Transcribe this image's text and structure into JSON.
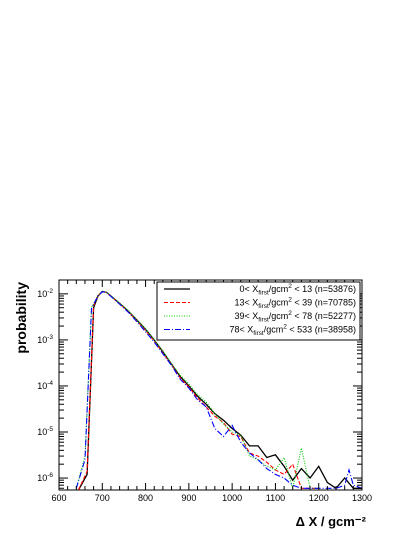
{
  "chart_data": {
    "type": "line",
    "xlabel": "Δ X / gcm⁻²",
    "ylabel": "probability",
    "xlim": [
      600,
      1300
    ],
    "ylim": [
      5.5e-07,
      0.02
    ],
    "y_scale": "log",
    "x_ticks": [
      "600",
      "700",
      "800",
      "900",
      "1000",
      "1100",
      "1200",
      "1300"
    ],
    "y_ticks": [
      {
        "base": "10",
        "exp": "-6",
        "value": 1e-06
      },
      {
        "base": "10",
        "exp": "-5",
        "value": 1e-05
      },
      {
        "base": "10",
        "exp": "-4",
        "value": 0.0001
      },
      {
        "base": "10",
        "exp": "-3",
        "value": 0.001
      },
      {
        "base": "10",
        "exp": "-2",
        "value": 0.01
      }
    ],
    "legend_position": "top-right",
    "series": [
      {
        "name": "0< X_first/gcm² < 13 (n=53876)",
        "legend": {
          "lo": "0",
          "hi": "13",
          "n": "(n=53876)"
        },
        "color": "#000000",
        "dash": "",
        "x": [
          645,
          665,
          680,
          690,
          700,
          710,
          720,
          740,
          760,
          780,
          800,
          820,
          840,
          860,
          880,
          900,
          920,
          940,
          960,
          980,
          1000,
          1020,
          1040,
          1060,
          1080,
          1100,
          1120,
          1140,
          1160,
          1180,
          1200,
          1220,
          1240,
          1260,
          1280,
          1300
        ],
        "y": [
          5e-07,
          1.2e-06,
          0.005,
          0.009,
          0.0113,
          0.0108,
          0.009,
          0.0062,
          0.0042,
          0.0027,
          0.0017,
          0.001,
          0.00055,
          0.0003,
          0.00016,
          0.0001,
          6e-05,
          4e-05,
          2.5e-05,
          1.8e-05,
          1.2e-05,
          8.5e-06,
          5e-06,
          5e-06,
          2.8e-06,
          3.2e-06,
          1.8e-06,
          9e-07,
          1.6e-06,
          1e-06,
          1.8e-06,
          8e-07,
          6e-07,
          1e-06,
          6e-07,
          6e-07
        ]
      },
      {
        "name": "13< X_first/gcm² < 39 (n=70785)",
        "legend": {
          "lo": "13",
          "hi": "39",
          "n": "(n=70785)"
        },
        "color": "#ff0000",
        "dash": "4,2",
        "x": [
          645,
          665,
          680,
          690,
          700,
          710,
          720,
          740,
          760,
          780,
          800,
          820,
          840,
          860,
          880,
          900,
          920,
          940,
          960,
          980,
          1000,
          1020,
          1040,
          1060,
          1080,
          1100,
          1120,
          1140,
          1160,
          1180,
          1200
        ],
        "y": [
          5e-07,
          1.4e-06,
          0.0055,
          0.0092,
          0.0112,
          0.0107,
          0.0089,
          0.0061,
          0.0041,
          0.0026,
          0.0016,
          0.00095,
          0.00052,
          0.00029,
          0.00015,
          9.5e-05,
          5.5e-05,
          3.5e-05,
          2.2e-05,
          1.6e-05,
          9e-06,
          8e-06,
          3.5e-06,
          3e-06,
          2.2e-06,
          1.5e-06,
          1.2e-06,
          2e-06,
          6e-07,
          6e-07,
          6e-07
        ]
      },
      {
        "name": "39< X_first/gcm² < 78 (n=52277)",
        "legend": {
          "lo": "39",
          "hi": "78",
          "n": "(n=52277)"
        },
        "color": "#00cc00",
        "dash": "1,1.5",
        "x": [
          640,
          660,
          675,
          690,
          700,
          710,
          720,
          740,
          760,
          780,
          800,
          820,
          840,
          860,
          880,
          900,
          920,
          940,
          960,
          980,
          1000,
          1020,
          1040,
          1060,
          1080,
          1100,
          1120,
          1140,
          1160,
          1180,
          1200
        ],
        "y": [
          6e-07,
          3e-06,
          0.005,
          0.0093,
          0.0113,
          0.0108,
          0.009,
          0.0063,
          0.0043,
          0.0027,
          0.0017,
          0.001,
          0.00058,
          0.0003,
          0.00017,
          0.00011,
          6.5e-05,
          4.5e-05,
          2.5e-05,
          1.5e-05,
          1e-05,
          8.5e-06,
          3e-06,
          2.5e-06,
          1.8e-06,
          1.5e-06,
          2.8e-06,
          6e-07,
          4.5e-06,
          6e-07,
          6e-07
        ]
      },
      {
        "name": "78< X_first/gcm² < 533 (n=38958)",
        "legend": {
          "lo": "78",
          "hi": "533",
          "n": "(n=38958)"
        },
        "color": "#0000ff",
        "dash": "6,2,1,2",
        "x": [
          640,
          660,
          675,
          690,
          700,
          710,
          720,
          740,
          760,
          780,
          800,
          820,
          840,
          860,
          880,
          900,
          920,
          940,
          960,
          980,
          1000,
          1020,
          1040,
          1060,
          1080,
          1100,
          1120,
          1140,
          1160,
          1180,
          1200,
          1240,
          1260,
          1270,
          1280,
          1300
        ],
        "y": [
          6e-07,
          2.5e-06,
          0.0048,
          0.0091,
          0.0111,
          0.0107,
          0.0088,
          0.006,
          0.004,
          0.0025,
          0.0015,
          0.0009,
          0.0005,
          0.00028,
          0.00014,
          9e-05,
          5e-05,
          3.5e-05,
          1.2e-05,
          8e-06,
          1.4e-05,
          6e-06,
          3.5e-06,
          2.5e-06,
          1.6e-06,
          1.2e-06,
          1e-06,
          7e-07,
          6e-07,
          6e-07,
          6e-07,
          6e-07,
          7e-07,
          1.5e-06,
          7e-07,
          6e-07
        ]
      }
    ]
  }
}
